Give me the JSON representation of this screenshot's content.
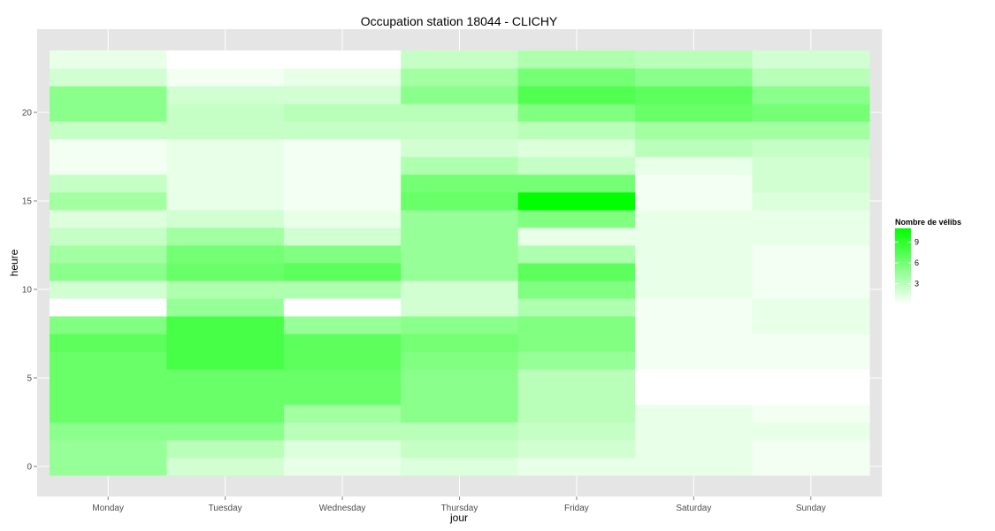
{
  "chart_data": {
    "type": "heatmap",
    "title": "Occupation station 18044 - CLICHY",
    "xlabel": "jour",
    "ylabel": "heure",
    "x_categories": [
      "Monday",
      "Tuesday",
      "Wednesday",
      "Thursday",
      "Friday",
      "Saturday",
      "Sunday"
    ],
    "y_hours": [
      0,
      1,
      2,
      3,
      4,
      5,
      6,
      7,
      8,
      9,
      10,
      11,
      12,
      13,
      14,
      15,
      16,
      17,
      18,
      19,
      20,
      21,
      22,
      23
    ],
    "y_ticks": [
      0,
      5,
      10,
      15,
      20
    ],
    "ylim": [
      -0.5,
      23.5
    ],
    "grid": true,
    "values": [
      [
        4.5,
        2,
        1,
        1.5,
        1,
        1,
        0.5
      ],
      [
        4.5,
        3,
        1.5,
        2.5,
        2,
        1,
        0.5
      ],
      [
        5,
        5,
        3,
        3,
        2.5,
        1,
        1
      ],
      [
        6.5,
        6.5,
        4,
        5,
        3,
        1,
        0.5
      ],
      [
        6.5,
        6.5,
        6.5,
        5,
        3,
        0,
        0
      ],
      [
        6.5,
        6.5,
        6.5,
        5,
        3,
        0,
        0
      ],
      [
        6.5,
        8,
        7,
        5.5,
        4.5,
        0.5,
        0.5
      ],
      [
        7,
        8,
        7,
        6,
        5.5,
        0.5,
        0.5
      ],
      [
        5.5,
        8,
        4.5,
        5,
        5.5,
        0.5,
        1
      ],
      [
        0,
        4.5,
        0,
        2,
        3.5,
        0.5,
        1
      ],
      [
        2,
        3.5,
        3.5,
        2,
        5.5,
        1,
        0.5
      ],
      [
        5,
        6.5,
        7,
        4.5,
        7,
        1,
        0.5
      ],
      [
        4,
        6,
        5.5,
        4.5,
        3.5,
        1,
        0.5
      ],
      [
        2.5,
        4,
        2,
        4.5,
        1,
        1,
        1
      ],
      [
        1.5,
        2,
        1,
        4.5,
        5.5,
        1,
        1
      ],
      [
        4,
        1,
        0.5,
        6.5,
        11,
        0.5,
        1.5
      ],
      [
        2.5,
        1,
        0.5,
        6,
        6,
        0.5,
        2
      ],
      [
        0.5,
        1,
        0.5,
        3.5,
        2.5,
        1,
        2
      ],
      [
        0.5,
        1,
        0.5,
        2,
        1.5,
        3,
        2.5
      ],
      [
        2.5,
        2.5,
        2.5,
        2.5,
        3,
        4,
        4
      ],
      [
        5,
        2.5,
        3,
        3,
        5.5,
        6.5,
        6
      ],
      [
        5,
        2,
        2,
        5,
        7.5,
        7,
        5
      ],
      [
        2,
        0.5,
        1,
        4,
        6,
        5,
        3
      ],
      [
        1,
        0,
        0,
        2.5,
        3.5,
        3,
        2
      ]
    ],
    "color_scale": {
      "low": "#ffffff",
      "high": "#00ff00",
      "max_value": 11
    },
    "legend": {
      "title": "Nombre de vélibs",
      "ticks": [
        3,
        6,
        9
      ],
      "placement": "right"
    },
    "panel_background": "#e5e5e5",
    "gridline_color": "#ffffff"
  }
}
